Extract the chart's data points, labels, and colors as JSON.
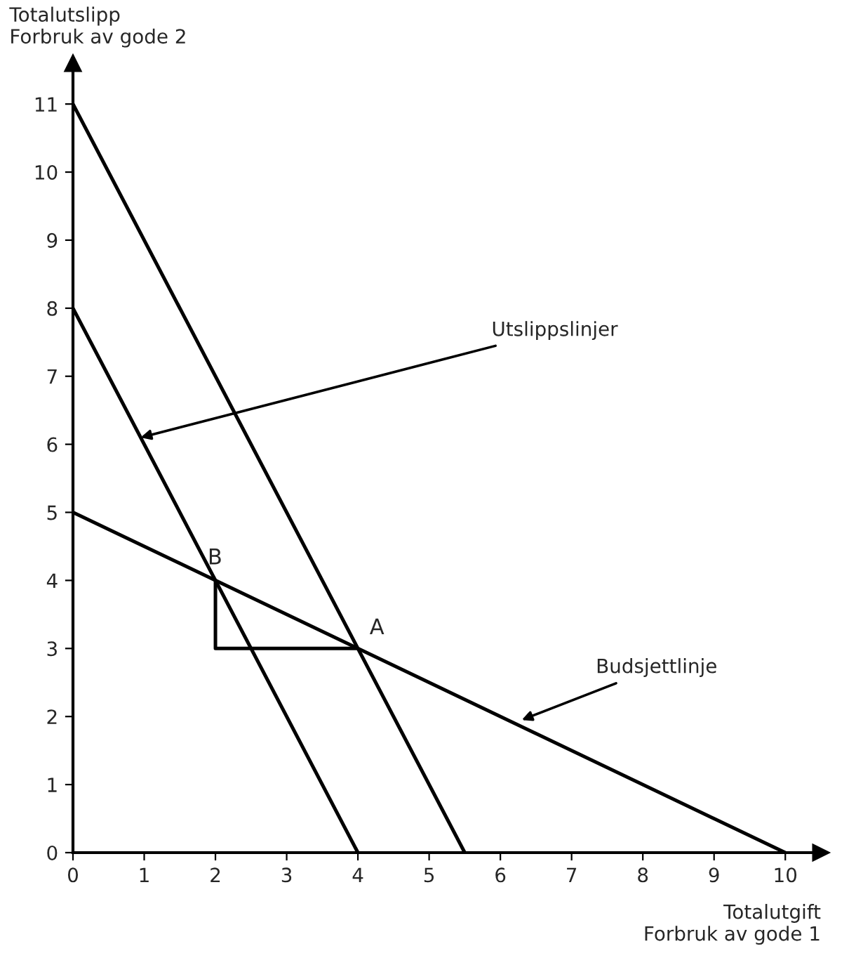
{
  "chart_data": {
    "type": "line",
    "xlabel": "Totalutgift\nForbruk av gode 1",
    "ylabel": "Totalutslipp\nForbruk av gode 2",
    "xlim": [
      0,
      10.5
    ],
    "ylim": [
      0,
      11.6
    ],
    "xticks": [
      0,
      1,
      2,
      3,
      4,
      5,
      6,
      7,
      8,
      9,
      10
    ],
    "yticks": [
      0,
      1,
      2,
      3,
      4,
      5,
      6,
      7,
      8,
      9,
      10,
      11
    ],
    "grid": false,
    "legend": false,
    "series": [
      {
        "color": "#000000",
        "x": [
          0,
          5.5
        ],
        "values": [
          11,
          0
        ]
      },
      {
        "color": "#000000",
        "x": [
          0,
          4
        ],
        "values": [
          8,
          0
        ]
      },
      {
        "color": "#000000",
        "x": [
          0,
          10
        ],
        "values": [
          5,
          0
        ]
      },
      {
        "color": "#000000",
        "x": [
          2,
          2,
          4
        ],
        "values": [
          4,
          3,
          3
        ]
      }
    ],
    "annotations": [
      {
        "text": "A",
        "x": 4,
        "y": 3
      },
      {
        "text": "B",
        "x": 2,
        "y": 4
      },
      {
        "text": "Utslippslinjer",
        "x": 0.95,
        "y": 6.1
      },
      {
        "text": "Budsjettlinje",
        "x": 6.3,
        "y": 1.95
      }
    ]
  }
}
